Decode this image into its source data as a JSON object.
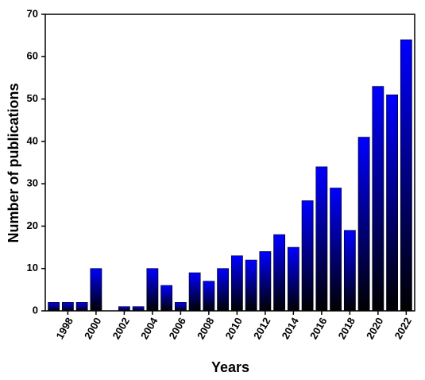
{
  "chart_data": {
    "type": "bar",
    "color": "#0000ff",
    "x_label": "Years",
    "y_label": "Number of publications",
    "x": [
      1997,
      1998,
      1999,
      2000,
      2001,
      2002,
      2003,
      2004,
      2005,
      2006,
      2007,
      2008,
      2009,
      2010,
      2011,
      2012,
      2013,
      2014,
      2015,
      2016,
      2017,
      2018,
      2019,
      2020,
      2021,
      2022
    ],
    "values": [
      2,
      2,
      2,
      10,
      0,
      1,
      1,
      10,
      6,
      2,
      9,
      7,
      10,
      13,
      12,
      14,
      18,
      15,
      26,
      34,
      29,
      19,
      41,
      53,
      51,
      64
    ],
    "xlim": [
      1996.4,
      2022.6
    ],
    "xticks": [
      1998,
      2000,
      2002,
      2004,
      2006,
      2008,
      2010,
      2012,
      2014,
      2016,
      2018,
      2020,
      2022
    ],
    "ylim": [
      0,
      70
    ],
    "yticks": [
      0,
      10,
      20,
      30,
      40,
      50,
      60,
      70
    ]
  }
}
